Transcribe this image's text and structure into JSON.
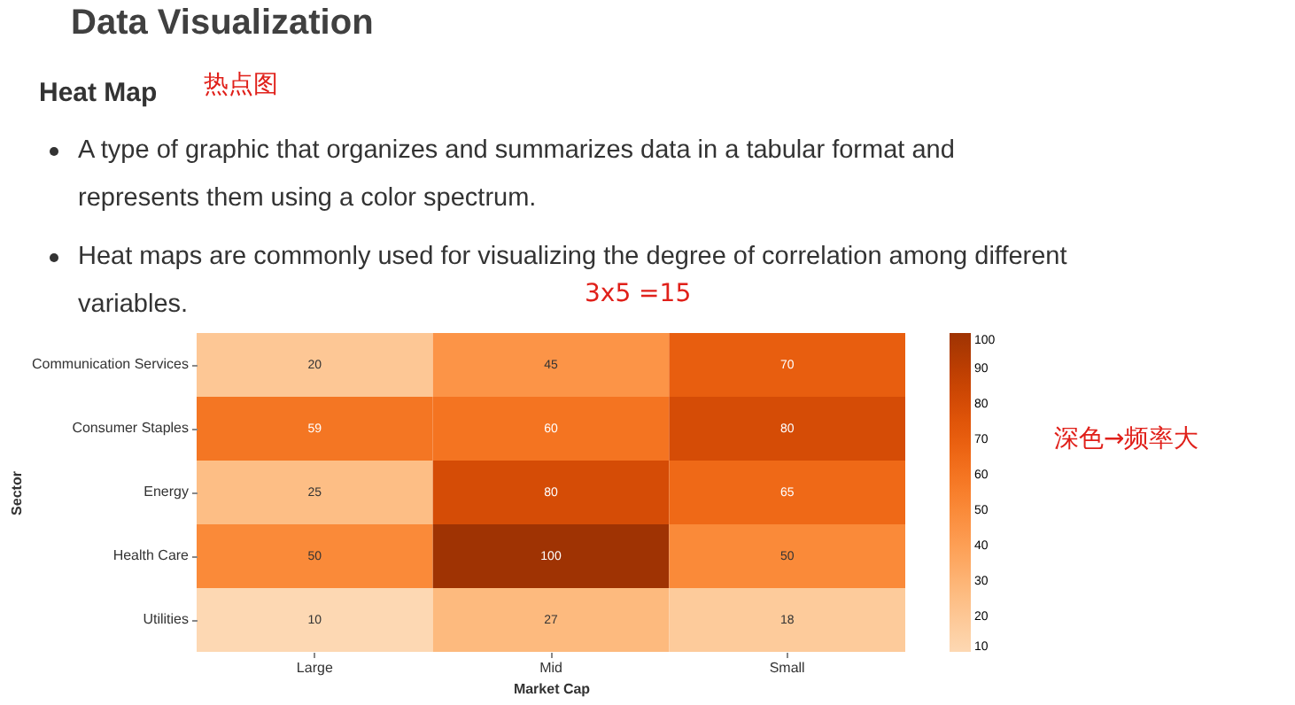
{
  "chart_data": {
    "type": "heatmap",
    "title": "Data Visualization",
    "subtitle": "Heat Map",
    "xlabel": "Market Cap",
    "ylabel": "Sector",
    "annotations": [
      "A type of graphic that organizes and summarizes data in a tabular format and represents them using a color spectrum.",
      "Heat maps are commonly used for visualizing the degree of correlation among different variables.",
      "热点图",
      "3x5 =15",
      "深色→频率大"
    ],
    "categories": [
      "Large",
      "Mid",
      "Small"
    ],
    "y_categories": [
      "Communication Services",
      "Consumer Staples",
      "Energy",
      "Health Care",
      "Utilities"
    ],
    "cells": [
      [
        20,
        45,
        70
      ],
      [
        59,
        60,
        80
      ],
      [
        25,
        80,
        65
      ],
      [
        50,
        100,
        50
      ],
      [
        10,
        27,
        18
      ]
    ],
    "data_labels": true,
    "clim": [
      10,
      100
    ],
    "cticks": [
      10,
      20,
      30,
      40,
      50,
      60,
      70,
      80,
      90,
      100
    ]
  }
}
